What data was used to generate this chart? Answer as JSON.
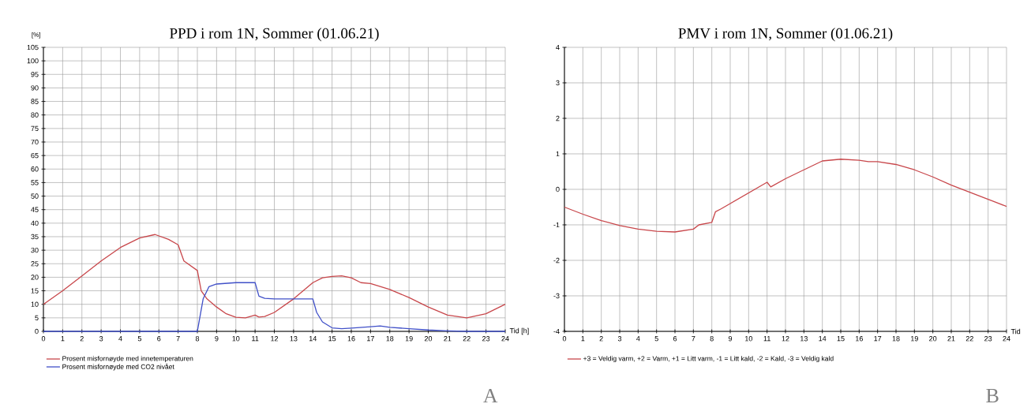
{
  "chart_data": [
    {
      "type": "line",
      "title": "PPD i rom 1N, Sommer (01.06.21)",
      "xlabel": "Tid [h]",
      "ylabel": "[%]",
      "xlim": [
        0,
        24
      ],
      "xticks": [
        0,
        1,
        2,
        3,
        4,
        5,
        6,
        7,
        8,
        9,
        10,
        11,
        12,
        13,
        14,
        15,
        16,
        17,
        18,
        19,
        20,
        21,
        22,
        23,
        24
      ],
      "ylim": [
        0,
        105
      ],
      "yticks": [
        0,
        5,
        10,
        15,
        20,
        25,
        30,
        35,
        40,
        45,
        50,
        55,
        60,
        65,
        70,
        75,
        80,
        85,
        90,
        95,
        100,
        105
      ],
      "grid": true,
      "legend": "bottom",
      "line_style": "solid",
      "annotations": [
        "A"
      ],
      "series": [
        {
          "name": "Prosent misfornøyde med innetemperaturen",
          "color": "#c8474b",
          "x": [
            0,
            1,
            2,
            3,
            4,
            5,
            5.8,
            6.5,
            7,
            7.3,
            8,
            8.2,
            8.5,
            9,
            9.5,
            10,
            10.5,
            11,
            11.2,
            11.5,
            12,
            13,
            14,
            14.5,
            15,
            15.5,
            16,
            16.5,
            17,
            18,
            19,
            20,
            21,
            22,
            23,
            24
          ],
          "values": [
            10,
            15,
            20.5,
            26,
            31,
            34.5,
            35.8,
            34,
            32,
            26,
            22.5,
            15,
            12,
            9,
            6.5,
            5.2,
            5,
            6,
            5.3,
            5.5,
            7,
            12,
            18,
            19.8,
            20.3,
            20.5,
            19.8,
            18,
            17.7,
            15.5,
            12.5,
            9,
            6,
            5,
            6.5,
            10
          ]
        },
        {
          "name": "Prosent misfornøyde med CO2 nivået",
          "color": "#4050c8",
          "x": [
            0,
            8,
            8.3,
            8.6,
            9,
            10,
            11,
            11.2,
            11.5,
            12,
            14,
            14.2,
            14.5,
            15,
            15.5,
            16,
            17,
            17.5,
            18,
            19,
            20,
            21,
            22,
            24
          ],
          "values": [
            0,
            0,
            12,
            16.5,
            17.5,
            18,
            18,
            13,
            12.2,
            12,
            12,
            7,
            3.5,
            1.3,
            1,
            1.2,
            1.7,
            2,
            1.5,
            1,
            0.5,
            0.2,
            0,
            0
          ]
        }
      ]
    },
    {
      "type": "line",
      "title": "PMV i rom 1N, Sommer (01.06.21)",
      "xlabel": "Tid",
      "xlim": [
        0,
        24
      ],
      "xticks": [
        0,
        1,
        2,
        3,
        4,
        5,
        6,
        7,
        8,
        9,
        10,
        11,
        12,
        13,
        14,
        15,
        16,
        17,
        18,
        19,
        20,
        21,
        22,
        23,
        24
      ],
      "ylim": [
        -4,
        4
      ],
      "yticks": [
        -4,
        -3,
        -2,
        -1,
        0,
        1,
        2,
        3,
        4
      ],
      "grid": true,
      "legend": "bottom",
      "line_style": "solid",
      "annotations": [
        "B"
      ],
      "series": [
        {
          "name": "+3 = Veldig varm, +2 = Varm, +1 = Litt varm, -1 = Litt kald, -2 = Kald, -3 = Veldig kald",
          "color": "#c8474b",
          "x": [
            0,
            1,
            2,
            3,
            4,
            5,
            6,
            7,
            7.3,
            8,
            8.2,
            8.5,
            9,
            10,
            11,
            11.2,
            12,
            13,
            14,
            15,
            16,
            16.5,
            17,
            18,
            19,
            20,
            21,
            22,
            23,
            24
          ],
          "values": [
            -0.5,
            -0.7,
            -0.88,
            -1.02,
            -1.12,
            -1.18,
            -1.2,
            -1.12,
            -1.0,
            -0.93,
            -0.63,
            -0.55,
            -0.4,
            -0.1,
            0.2,
            0.07,
            0.3,
            0.55,
            0.8,
            0.85,
            0.82,
            0.78,
            0.78,
            0.7,
            0.55,
            0.35,
            0.12,
            -0.08,
            -0.28,
            -0.48
          ]
        }
      ]
    }
  ]
}
